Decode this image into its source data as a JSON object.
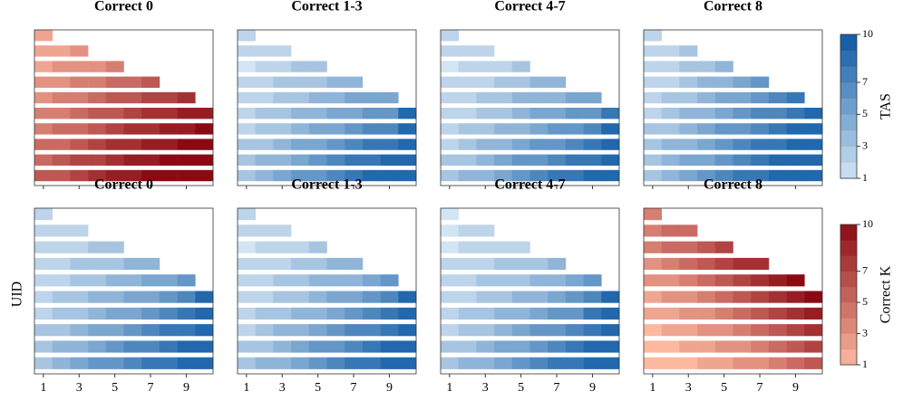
{
  "chart_data": [
    {
      "type": "heatmap",
      "title": "Correct 0",
      "colorbar": 1,
      "x": [
        1,
        2,
        3,
        4,
        5,
        6,
        7,
        8,
        9,
        10
      ],
      "xlim": [
        0.5,
        10.5
      ],
      "xticks": [
        1,
        3,
        5,
        7,
        9
      ],
      "show_xtick_labels": false,
      "z": [
        [
          2,
          null,
          null,
          null,
          null,
          null,
          null,
          null,
          null,
          null
        ],
        [
          2,
          2,
          3,
          null,
          null,
          null,
          null,
          null,
          null,
          null
        ],
        [
          2,
          3,
          3,
          3,
          4,
          null,
          null,
          null,
          null,
          null
        ],
        [
          3,
          3,
          4,
          4,
          5,
          5,
          6,
          null,
          null,
          null
        ],
        [
          3,
          4,
          4,
          5,
          6,
          6,
          7,
          7,
          8,
          null
        ],
        [
          4,
          4,
          5,
          6,
          6,
          7,
          8,
          8,
          9,
          9
        ],
        [
          4,
          5,
          5,
          6,
          7,
          8,
          8,
          9,
          9,
          10
        ],
        [
          5,
          5,
          6,
          7,
          8,
          8,
          9,
          9,
          10,
          10
        ],
        [
          5,
          6,
          7,
          7,
          8,
          9,
          9,
          10,
          10,
          10
        ],
        [
          6,
          6,
          7,
          8,
          9,
          9,
          10,
          10,
          10,
          10
        ]
      ]
    },
    {
      "type": "heatmap",
      "title": "Correct 1-3",
      "colorbar": 0,
      "x": [
        1,
        2,
        3,
        4,
        5,
        6,
        7,
        8,
        9,
        10
      ],
      "xlim": [
        0.5,
        10.5
      ],
      "xticks": [
        1,
        3,
        5,
        7,
        9
      ],
      "show_xtick_labels": false,
      "z": [
        [
          2,
          null,
          null,
          null,
          null,
          null,
          null,
          null,
          null,
          null
        ],
        [
          2,
          2,
          2,
          null,
          null,
          null,
          null,
          null,
          null,
          null
        ],
        [
          1,
          2,
          2,
          3,
          3,
          null,
          null,
          null,
          null,
          null
        ],
        [
          2,
          2,
          3,
          3,
          3,
          4,
          4,
          null,
          null,
          null
        ],
        [
          2,
          2,
          3,
          3,
          4,
          4,
          5,
          5,
          5,
          null
        ],
        [
          2,
          3,
          3,
          4,
          4,
          5,
          5,
          6,
          6,
          9
        ],
        [
          2,
          3,
          3,
          4,
          5,
          5,
          6,
          7,
          7,
          9
        ],
        [
          3,
          3,
          4,
          5,
          5,
          6,
          7,
          8,
          8,
          9
        ],
        [
          3,
          4,
          4,
          5,
          6,
          7,
          8,
          8,
          9,
          9
        ],
        [
          3,
          4,
          5,
          6,
          6,
          7,
          8,
          9,
          9,
          9
        ]
      ]
    },
    {
      "type": "heatmap",
      "title": "Correct 4-7",
      "colorbar": 0,
      "x": [
        1,
        2,
        3,
        4,
        5,
        6,
        7,
        8,
        9,
        10
      ],
      "xlim": [
        0.5,
        10.5
      ],
      "xticks": [
        1,
        3,
        5,
        7,
        9
      ],
      "show_xtick_labels": false,
      "z": [
        [
          2,
          null,
          null,
          null,
          null,
          null,
          null,
          null,
          null,
          null
        ],
        [
          2,
          2,
          2,
          null,
          null,
          null,
          null,
          null,
          null,
          null
        ],
        [
          1,
          2,
          2,
          2,
          3,
          null,
          null,
          null,
          null,
          null
        ],
        [
          2,
          2,
          2,
          3,
          3,
          4,
          4,
          null,
          null,
          null
        ],
        [
          2,
          2,
          3,
          3,
          4,
          4,
          4,
          5,
          5,
          null
        ],
        [
          2,
          2,
          3,
          3,
          4,
          5,
          5,
          6,
          6,
          8
        ],
        [
          2,
          3,
          3,
          4,
          4,
          5,
          6,
          6,
          7,
          9
        ],
        [
          2,
          3,
          4,
          4,
          5,
          6,
          6,
          7,
          8,
          9
        ],
        [
          3,
          3,
          4,
          5,
          6,
          6,
          7,
          8,
          8,
          9
        ],
        [
          3,
          4,
          4,
          5,
          6,
          7,
          8,
          8,
          9,
          9
        ]
      ]
    },
    {
      "type": "heatmap",
      "title": "Correct 8",
      "colorbar": 0,
      "x": [
        1,
        2,
        3,
        4,
        5,
        6,
        7,
        8,
        9,
        10
      ],
      "xlim": [
        0.5,
        10.5
      ],
      "xticks": [
        1,
        3,
        5,
        7,
        9
      ],
      "show_xtick_labels": false,
      "z": [
        [
          2,
          null,
          null,
          null,
          null,
          null,
          null,
          null,
          null,
          null
        ],
        [
          2,
          2,
          3,
          null,
          null,
          null,
          null,
          null,
          null,
          null
        ],
        [
          2,
          2,
          3,
          3,
          4,
          null,
          null,
          null,
          null,
          null
        ],
        [
          2,
          2,
          3,
          4,
          4,
          5,
          6,
          null,
          null,
          null
        ],
        [
          2,
          3,
          3,
          4,
          5,
          5,
          6,
          7,
          8,
          null
        ],
        [
          2,
          3,
          4,
          4,
          5,
          6,
          7,
          7,
          8,
          9
        ],
        [
          3,
          3,
          4,
          5,
          6,
          6,
          7,
          8,
          9,
          9
        ],
        [
          3,
          4,
          4,
          5,
          6,
          7,
          8,
          8,
          9,
          9
        ],
        [
          3,
          4,
          5,
          5,
          6,
          7,
          8,
          9,
          9,
          9
        ],
        [
          3,
          4,
          5,
          6,
          7,
          8,
          8,
          9,
          9,
          9
        ]
      ]
    },
    {
      "type": "heatmap",
      "title": "Correct 0",
      "colorbar": 0,
      "x": [
        1,
        2,
        3,
        4,
        5,
        6,
        7,
        8,
        9,
        10
      ],
      "xlim": [
        0.5,
        10.5
      ],
      "xticks": [
        1,
        3,
        5,
        7,
        9
      ],
      "show_xtick_labels": true,
      "z": [
        [
          2,
          null,
          null,
          null,
          null,
          null,
          null,
          null,
          null,
          null
        ],
        [
          2,
          2,
          2,
          null,
          null,
          null,
          null,
          null,
          null,
          null
        ],
        [
          2,
          2,
          2,
          3,
          3,
          null,
          null,
          null,
          null,
          null
        ],
        [
          2,
          2,
          3,
          3,
          3,
          4,
          4,
          null,
          null,
          null
        ],
        [
          2,
          2,
          3,
          3,
          4,
          4,
          5,
          5,
          6,
          null
        ],
        [
          2,
          3,
          3,
          4,
          4,
          5,
          5,
          6,
          7,
          9
        ],
        [
          2,
          3,
          3,
          4,
          5,
          5,
          6,
          7,
          8,
          9
        ],
        [
          3,
          3,
          4,
          5,
          5,
          6,
          7,
          8,
          8,
          9
        ],
        [
          3,
          4,
          4,
          5,
          6,
          7,
          7,
          8,
          9,
          9
        ],
        [
          3,
          4,
          5,
          6,
          6,
          7,
          8,
          8,
          9,
          9
        ]
      ]
    },
    {
      "type": "heatmap",
      "title": "Correct 1-3",
      "colorbar": 0,
      "x": [
        1,
        2,
        3,
        4,
        5,
        6,
        7,
        8,
        9,
        10
      ],
      "xlim": [
        0.5,
        10.5
      ],
      "xticks": [
        1,
        3,
        5,
        7,
        9
      ],
      "show_xtick_labels": true,
      "z": [
        [
          2,
          null,
          null,
          null,
          null,
          null,
          null,
          null,
          null,
          null
        ],
        [
          2,
          2,
          2,
          null,
          null,
          null,
          null,
          null,
          null,
          null
        ],
        [
          1,
          2,
          2,
          2,
          3,
          null,
          null,
          null,
          null,
          null
        ],
        [
          2,
          2,
          2,
          3,
          3,
          4,
          4,
          null,
          null,
          null
        ],
        [
          2,
          2,
          3,
          3,
          4,
          4,
          4,
          5,
          6,
          null
        ],
        [
          2,
          2,
          3,
          3,
          4,
          5,
          5,
          6,
          7,
          9
        ],
        [
          2,
          3,
          3,
          4,
          4,
          5,
          6,
          7,
          8,
          9
        ],
        [
          2,
          3,
          4,
          4,
          5,
          6,
          7,
          7,
          8,
          9
        ],
        [
          3,
          3,
          4,
          5,
          6,
          6,
          7,
          8,
          9,
          9
        ],
        [
          3,
          4,
          4,
          5,
          6,
          7,
          8,
          8,
          9,
          9
        ]
      ]
    },
    {
      "type": "heatmap",
      "title": "Correct 4-7",
      "colorbar": 0,
      "x": [
        1,
        2,
        3,
        4,
        5,
        6,
        7,
        8,
        9,
        10
      ],
      "xlim": [
        0.5,
        10.5
      ],
      "xticks": [
        1,
        3,
        5,
        7,
        9
      ],
      "show_xtick_labels": true,
      "z": [
        [
          1,
          null,
          null,
          null,
          null,
          null,
          null,
          null,
          null,
          null
        ],
        [
          1,
          2,
          2,
          null,
          null,
          null,
          null,
          null,
          null,
          null
        ],
        [
          1,
          2,
          2,
          2,
          2,
          null,
          null,
          null,
          null,
          null
        ],
        [
          2,
          2,
          2,
          3,
          3,
          3,
          4,
          null,
          null,
          null
        ],
        [
          2,
          2,
          3,
          3,
          3,
          4,
          4,
          5,
          6,
          null
        ],
        [
          2,
          2,
          3,
          3,
          4,
          4,
          5,
          6,
          7,
          9
        ],
        [
          2,
          3,
          3,
          4,
          4,
          5,
          6,
          6,
          8,
          9
        ],
        [
          2,
          3,
          3,
          4,
          5,
          6,
          6,
          7,
          8,
          9
        ],
        [
          3,
          3,
          4,
          5,
          5,
          6,
          7,
          8,
          9,
          9
        ],
        [
          3,
          4,
          4,
          5,
          6,
          7,
          8,
          8,
          9,
          9
        ]
      ]
    },
    {
      "type": "heatmap",
      "title": "Correct 8",
      "colorbar": 1,
      "x": [
        1,
        2,
        3,
        4,
        5,
        6,
        7,
        8,
        9,
        10
      ],
      "xlim": [
        0.5,
        10.5
      ],
      "xticks": [
        1,
        3,
        5,
        7,
        9
      ],
      "show_xtick_labels": true,
      "z": [
        [
          4,
          null,
          null,
          null,
          null,
          null,
          null,
          null,
          null,
          null
        ],
        [
          4,
          5,
          5,
          null,
          null,
          null,
          null,
          null,
          null,
          null
        ],
        [
          4,
          5,
          5,
          6,
          7,
          null,
          null,
          null,
          null,
          null
        ],
        [
          3,
          4,
          5,
          6,
          7,
          8,
          8,
          null,
          null,
          null
        ],
        [
          3,
          3,
          4,
          5,
          6,
          7,
          8,
          9,
          10,
          null
        ],
        [
          2,
          3,
          3,
          4,
          5,
          6,
          7,
          8,
          9,
          10
        ],
        [
          2,
          2,
          3,
          3,
          4,
          5,
          6,
          7,
          8,
          9
        ],
        [
          1,
          2,
          2,
          3,
          3,
          4,
          5,
          6,
          7,
          8
        ],
        [
          1,
          1,
          2,
          2,
          3,
          3,
          4,
          5,
          6,
          7
        ],
        [
          1,
          1,
          1,
          2,
          2,
          3,
          3,
          4,
          5,
          6
        ]
      ]
    }
  ],
  "colorbars": [
    {
      "label": "TAS",
      "lim": [
        1,
        10
      ],
      "ticks": [
        1,
        3,
        5,
        7,
        10
      ],
      "colors": [
        "#d3e4f3",
        "#0b58a3"
      ]
    },
    {
      "label": "Correct K",
      "lim": [
        1,
        10
      ],
      "ticks": [
        1,
        3,
        5,
        7,
        10
      ],
      "colors": [
        "#fcb9a0",
        "#8a0a14"
      ]
    }
  ],
  "ylabel": "UID"
}
